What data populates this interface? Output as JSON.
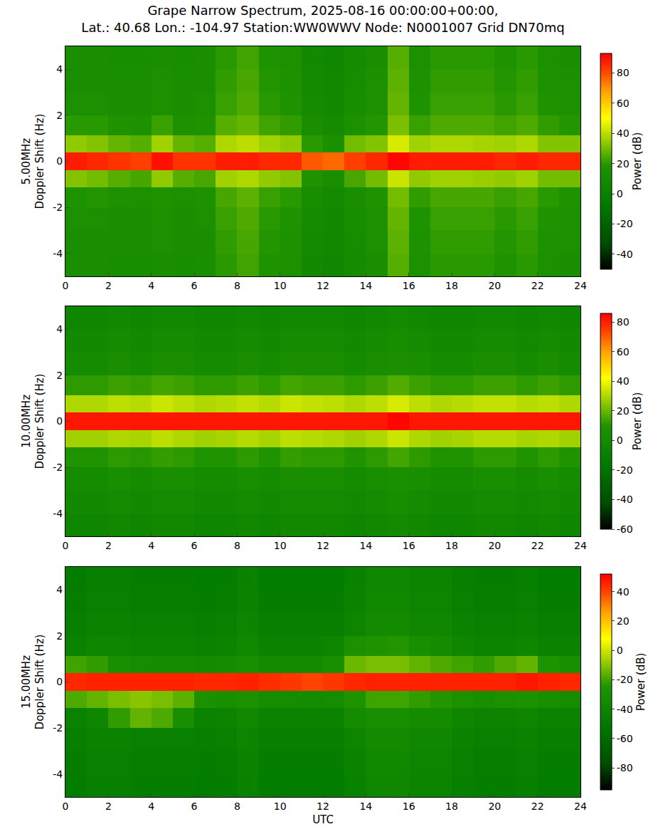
{
  "chart_data": {
    "type": "heatmap",
    "title": [
      "Grape Narrow Spectrum, 2025-08-16 00:00:00+00:00,",
      "Lat.: 40.68 Lon.: -104.97 Station:WW0WWV Node: N0001007 Grid DN70mq"
    ],
    "xlabel": "UTC",
    "xlim": [
      0,
      24
    ],
    "xticks": [
      0,
      2,
      4,
      6,
      8,
      10,
      12,
      14,
      16,
      18,
      20,
      22,
      24
    ],
    "grid": false,
    "panels": [
      {
        "ylabel": [
          "5.00MHz",
          "Doppler Shift (Hz)"
        ],
        "ylim": [
          -5,
          5
        ],
        "yticks": [
          -4,
          -2,
          0,
          2,
          4
        ],
        "colorbar_title": "Power (dB)",
        "zlim": [
          -50,
          93
        ],
        "zticks": [
          -40,
          -20,
          0,
          20,
          40,
          60,
          80
        ],
        "x": [
          0.5,
          1.5,
          2.5,
          3.5,
          4.5,
          5.5,
          6.5,
          7.5,
          8.5,
          9.5,
          10.5,
          11.5,
          12.5,
          13.5,
          14.5,
          15.5,
          16.5,
          17.5,
          18.5,
          19.5,
          20.5,
          21.5,
          22.5,
          23.5
        ],
        "y": [
          -4.5,
          -3.5,
          -2.5,
          -1.5,
          -0.75,
          0,
          0.75,
          1.5,
          2.5,
          3.5,
          4.5
        ],
        "z": [
          [
            13,
            13,
            12,
            12,
            14,
            12,
            13,
            20,
            23,
            18,
            16,
            8,
            6,
            10,
            14,
            26,
            16,
            20,
            20,
            20,
            18,
            20,
            16,
            14
          ],
          [
            14,
            14,
            13,
            13,
            15,
            13,
            14,
            21,
            24,
            19,
            17,
            9,
            7,
            11,
            15,
            27,
            17,
            21,
            21,
            21,
            19,
            21,
            17,
            15
          ],
          [
            15,
            15,
            14,
            14,
            16,
            14,
            15,
            22,
            25,
            20,
            18,
            10,
            8,
            12,
            16,
            28,
            18,
            22,
            22,
            22,
            20,
            22,
            18,
            16
          ],
          [
            18,
            19,
            17,
            16,
            18,
            16,
            17,
            24,
            27,
            22,
            20,
            12,
            9,
            14,
            18,
            30,
            21,
            24,
            24,
            24,
            22,
            24,
            20,
            18
          ],
          [
            32,
            30,
            26,
            24,
            34,
            26,
            24,
            36,
            38,
            34,
            32,
            18,
            14,
            24,
            30,
            42,
            34,
            36,
            36,
            35,
            34,
            36,
            30,
            30
          ],
          [
            88,
            86,
            84,
            82,
            90,
            84,
            84,
            88,
            88,
            86,
            86,
            78,
            76,
            82,
            86,
            92,
            88,
            88,
            88,
            88,
            86,
            88,
            86,
            86
          ],
          [
            34,
            32,
            28,
            26,
            36,
            28,
            26,
            38,
            40,
            36,
            34,
            20,
            16,
            30,
            32,
            44,
            36,
            38,
            38,
            37,
            36,
            38,
            32,
            32
          ],
          [
            20,
            20,
            18,
            17,
            22,
            17,
            18,
            26,
            28,
            23,
            21,
            13,
            10,
            16,
            19,
            31,
            22,
            25,
            25,
            25,
            23,
            25,
            21,
            19
          ],
          [
            15,
            15,
            14,
            14,
            16,
            14,
            15,
            22,
            25,
            20,
            18,
            10,
            8,
            12,
            16,
            28,
            18,
            22,
            22,
            22,
            20,
            22,
            18,
            16
          ],
          [
            14,
            14,
            13,
            13,
            15,
            13,
            14,
            21,
            24,
            19,
            17,
            9,
            7,
            11,
            15,
            27,
            17,
            21,
            21,
            21,
            19,
            21,
            17,
            15
          ],
          [
            13,
            13,
            12,
            12,
            14,
            12,
            13,
            20,
            23,
            18,
            16,
            8,
            6,
            10,
            14,
            26,
            16,
            20,
            20,
            20,
            18,
            20,
            16,
            14
          ]
        ]
      },
      {
        "ylabel": [
          "10.00MHz",
          "Doppler Shift (Hz)"
        ],
        "ylim": [
          -5,
          5
        ],
        "yticks": [
          -4,
          -2,
          0,
          2,
          4
        ],
        "colorbar_title": "Power (dB)",
        "zlim": [
          -60,
          86
        ],
        "zticks": [
          -60,
          -40,
          -20,
          0,
          20,
          40,
          60,
          80
        ],
        "x": [
          0.5,
          1.5,
          2.5,
          3.5,
          4.5,
          5.5,
          6.5,
          7.5,
          8.5,
          9.5,
          10.5,
          11.5,
          12.5,
          13.5,
          14.5,
          15.5,
          16.5,
          17.5,
          18.5,
          19.5,
          20.5,
          21.5,
          22.5,
          23.5
        ],
        "y": [
          -4.5,
          -3.5,
          -2.5,
          -1.5,
          -0.75,
          0,
          0.75,
          1.5,
          2.5,
          3.5,
          4.5
        ],
        "z": [
          [
            -4,
            -4,
            -2,
            -4,
            -2,
            -2,
            -4,
            -4,
            -2,
            -4,
            -2,
            -2,
            -2,
            -4,
            -2,
            0,
            -2,
            -4,
            -4,
            -2,
            -2,
            -4,
            -2,
            -4
          ],
          [
            -1,
            -1,
            1,
            -1,
            1,
            1,
            -1,
            -1,
            1,
            -1,
            1,
            1,
            1,
            -1,
            1,
            3,
            1,
            -1,
            -1,
            1,
            1,
            -1,
            1,
            -1
          ],
          [
            2,
            2,
            4,
            2,
            4,
            4,
            2,
            2,
            4,
            2,
            4,
            4,
            4,
            2,
            4,
            6,
            4,
            2,
            2,
            4,
            4,
            2,
            4,
            2
          ],
          [
            10,
            10,
            12,
            11,
            13,
            12,
            10,
            10,
            12,
            10,
            13,
            12,
            12,
            10,
            12,
            15,
            12,
            10,
            10,
            12,
            12,
            10,
            12,
            10
          ],
          [
            28,
            28,
            30,
            29,
            32,
            30,
            28,
            29,
            31,
            29,
            32,
            31,
            30,
            28,
            30,
            34,
            30,
            28,
            29,
            31,
            31,
            29,
            30,
            28
          ],
          [
            82,
            82,
            82,
            82,
            82,
            82,
            82,
            82,
            82,
            82,
            82,
            82,
            82,
            82,
            82,
            85,
            82,
            82,
            82,
            82,
            82,
            82,
            82,
            82
          ],
          [
            30,
            30,
            32,
            31,
            34,
            32,
            30,
            31,
            33,
            31,
            34,
            33,
            32,
            30,
            32,
            36,
            32,
            30,
            31,
            33,
            33,
            31,
            32,
            30
          ],
          [
            12,
            12,
            14,
            13,
            15,
            14,
            12,
            12,
            14,
            12,
            15,
            14,
            14,
            12,
            14,
            17,
            14,
            12,
            12,
            14,
            14,
            12,
            14,
            12
          ],
          [
            2,
            2,
            4,
            2,
            4,
            4,
            2,
            2,
            4,
            2,
            4,
            4,
            4,
            2,
            4,
            6,
            4,
            2,
            2,
            4,
            4,
            2,
            4,
            2
          ],
          [
            -1,
            -1,
            1,
            -1,
            1,
            1,
            -1,
            -1,
            1,
            -1,
            1,
            1,
            1,
            -1,
            1,
            3,
            1,
            -1,
            -1,
            1,
            1,
            -1,
            1,
            -1
          ],
          [
            -4,
            -4,
            -2,
            -4,
            -2,
            -2,
            -4,
            -4,
            -2,
            -4,
            -2,
            -2,
            -2,
            -4,
            -2,
            0,
            -2,
            -4,
            -4,
            -2,
            -2,
            -4,
            -2,
            -4
          ]
        ]
      },
      {
        "ylabel": [
          "15.00MHz",
          "Doppler Shift (Hz)"
        ],
        "ylim": [
          -5,
          5
        ],
        "yticks": [
          -4,
          -2,
          0,
          2,
          4
        ],
        "colorbar_title": "Power (dB)",
        "zlim": [
          -95,
          52
        ],
        "zticks": [
          -80,
          -60,
          -40,
          -20,
          0,
          20,
          40
        ],
        "x": [
          0.5,
          1.5,
          2.5,
          3.5,
          4.5,
          5.5,
          6.5,
          7.5,
          8.5,
          9.5,
          10.5,
          11.5,
          12.5,
          13.5,
          14.5,
          15.5,
          16.5,
          17.5,
          18.5,
          19.5,
          20.5,
          21.5,
          22.5,
          23.5
        ],
        "y": [
          -4.5,
          -3.5,
          -2.5,
          -1.5,
          -0.75,
          0,
          0.75,
          1.5,
          2.5,
          3.5,
          4.5
        ],
        "z": [
          [
            -48,
            -45,
            -45,
            -47,
            -47,
            -47,
            -48,
            -47,
            -43,
            -48,
            -48,
            -48,
            -48,
            -43,
            -38,
            -38,
            -41,
            -41,
            -45,
            -47,
            -47,
            -45,
            -48,
            -48
          ],
          [
            -47,
            -44,
            -44,
            -46,
            -46,
            -46,
            -47,
            -46,
            -42,
            -47,
            -47,
            -47,
            -47,
            -42,
            -37,
            -37,
            -40,
            -40,
            -44,
            -46,
            -46,
            -44,
            -47,
            -47
          ],
          [
            -45,
            -42,
            -42,
            -44,
            -44,
            -44,
            -45,
            -44,
            -40,
            -45,
            -45,
            -45,
            -45,
            -40,
            -35,
            -35,
            -38,
            -38,
            -42,
            -44,
            -44,
            -42,
            -45,
            -45
          ],
          [
            -42,
            -39,
            -22,
            -15,
            -18,
            -30,
            -42,
            -41,
            -37,
            -42,
            -42,
            -42,
            -42,
            -34,
            -30,
            -30,
            -33,
            -34,
            -39,
            -41,
            -41,
            -39,
            -42,
            -42
          ],
          [
            -18,
            -15,
            -12,
            -10,
            -12,
            -16,
            -28,
            -30,
            -28,
            -32,
            -32,
            -34,
            -32,
            -25,
            -20,
            -20,
            -22,
            -24,
            -28,
            -30,
            -28,
            -26,
            -30,
            -32
          ],
          [
            45,
            46,
            46,
            46,
            46,
            46,
            45,
            45,
            46,
            44,
            42,
            40,
            42,
            45,
            46,
            46,
            46,
            46,
            46,
            46,
            46,
            48,
            46,
            45
          ],
          [
            -20,
            -22,
            -30,
            -32,
            -33,
            -33,
            -35,
            -34,
            -30,
            -35,
            -35,
            -35,
            -30,
            -14,
            -12,
            -12,
            -15,
            -18,
            -20,
            -22,
            -18,
            -15,
            -25,
            -30
          ],
          [
            -42,
            -39,
            -39,
            -41,
            -41,
            -41,
            -42,
            -41,
            -37,
            -42,
            -42,
            -42,
            -40,
            -28,
            -25,
            -24,
            -30,
            -33,
            -39,
            -41,
            -41,
            -39,
            -42,
            -42
          ],
          [
            -45,
            -42,
            -42,
            -44,
            -44,
            -44,
            -45,
            -44,
            -40,
            -45,
            -45,
            -45,
            -45,
            -40,
            -35,
            -35,
            -38,
            -38,
            -42,
            -44,
            -44,
            -42,
            -45,
            -45
          ],
          [
            -47,
            -44,
            -44,
            -46,
            -46,
            -46,
            -47,
            -46,
            -42,
            -47,
            -47,
            -47,
            -47,
            -42,
            -37,
            -37,
            -40,
            -40,
            -44,
            -46,
            -46,
            -44,
            -47,
            -47
          ],
          [
            -48,
            -45,
            -45,
            -47,
            -47,
            -47,
            -48,
            -47,
            -43,
            -48,
            -48,
            -48,
            -48,
            -43,
            -38,
            -38,
            -41,
            -41,
            -45,
            -47,
            -47,
            -45,
            -48,
            -48
          ]
        ]
      }
    ]
  }
}
